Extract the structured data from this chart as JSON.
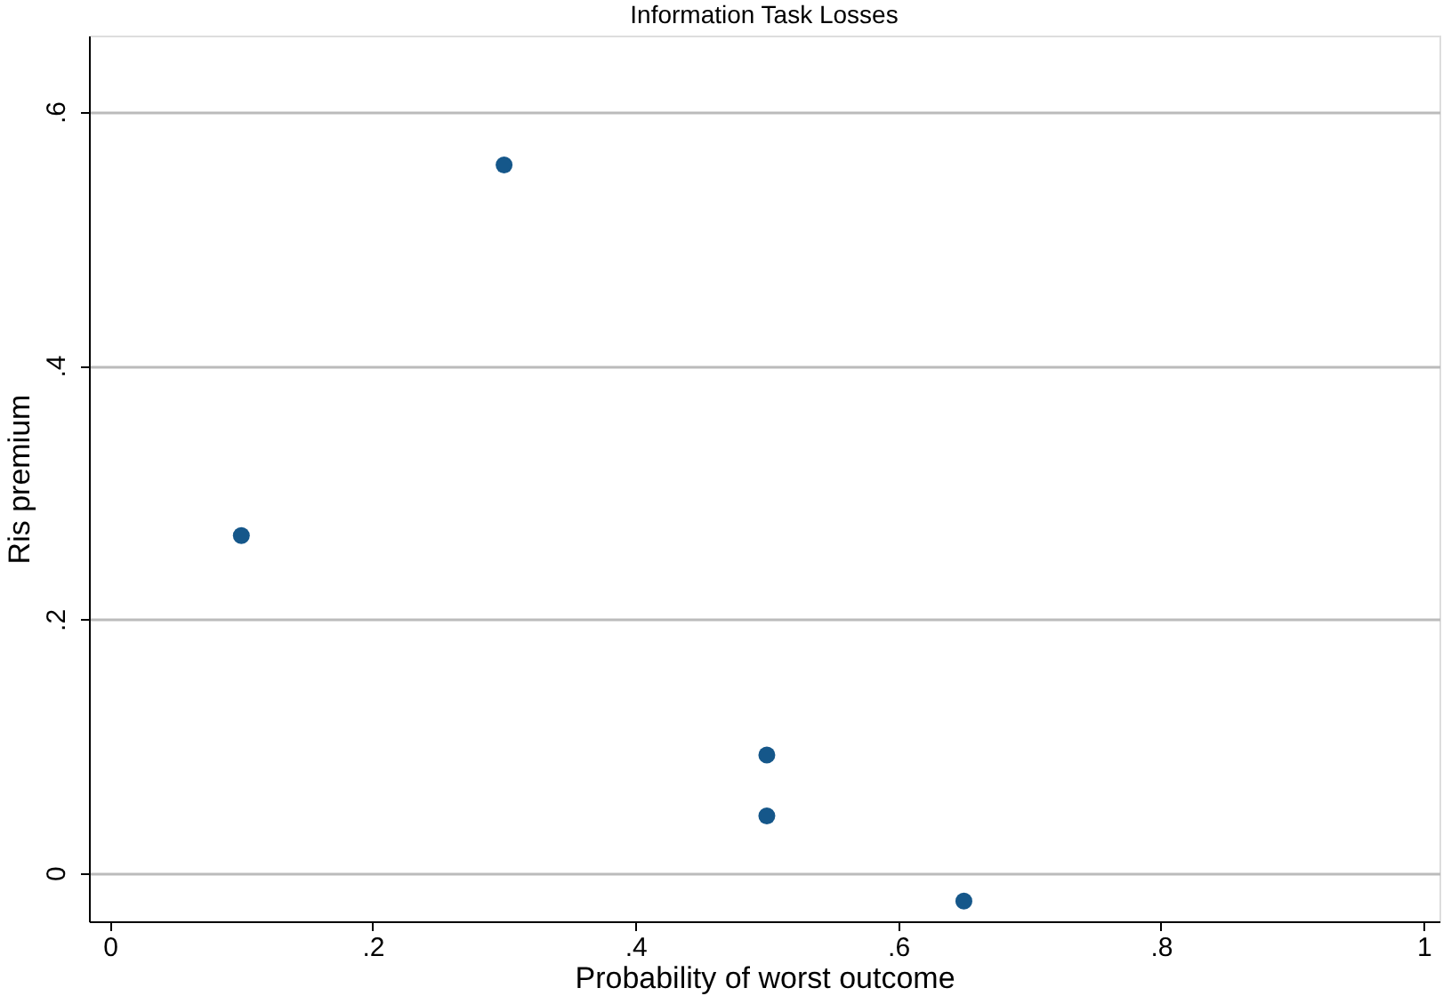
{
  "chart_data": {
    "type": "scatter",
    "title": "Information Task Losses",
    "xlabel": "Probability of worst outcome",
    "ylabel": "Ris premium",
    "x": [
      0.1,
      0.3,
      0.5,
      0.5,
      0.65
    ],
    "series": [
      {
        "color": "#15578a",
        "values": [
          0.266,
          0.558,
          0.093,
          0.045,
          -0.022
        ]
      }
    ],
    "xlim": [
      -0.016,
      1.012
    ],
    "ylim": [
      -0.038,
      0.66
    ],
    "xticks": [
      0,
      {
        "value": 0.2,
        "label": ".2"
      },
      {
        "value": 0.4,
        "label": ".4"
      },
      {
        "value": 0.6,
        "label": ".6"
      },
      {
        "value": 0.8,
        "label": ".8"
      },
      1
    ],
    "yticks": [
      0,
      {
        "value": 0.2,
        "label": ".2"
      },
      {
        "value": 0.4,
        "label": ".4"
      },
      {
        "value": 0.6,
        "label": ".6"
      }
    ],
    "grid": "y",
    "marker": "circle",
    "legend": false
  }
}
